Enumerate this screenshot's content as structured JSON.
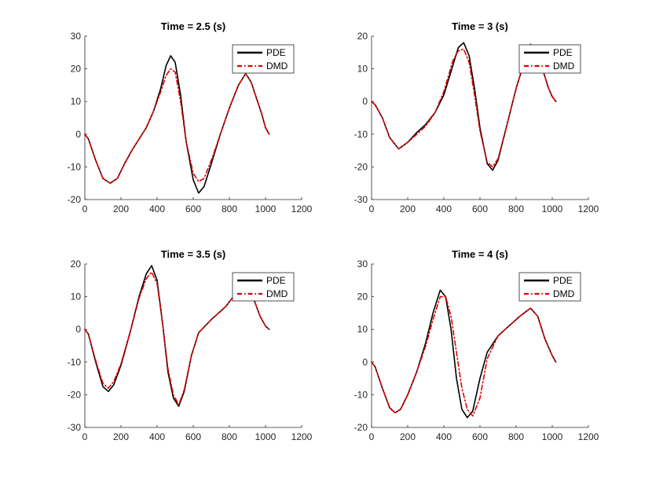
{
  "figure": {
    "colors": {
      "pde": "#000000",
      "dmd": "#e00000",
      "axis": "#262626"
    }
  },
  "chart_data": [
    {
      "type": "line",
      "title": "Time = 2.5 (s)",
      "xlim": [
        0,
        1200
      ],
      "ylim": [
        -20,
        30
      ],
      "xticks": [
        0,
        200,
        400,
        600,
        800,
        1000,
        1200
      ],
      "yticks": [
        -20,
        -10,
        0,
        10,
        20,
        30
      ],
      "xtick_labels": [
        "0",
        "200",
        "400",
        "600",
        "800",
        "1000",
        "1200"
      ],
      "ytick_labels": [
        "-20",
        "-10",
        "0",
        "10",
        "20",
        "30"
      ],
      "legend_position": "top-right",
      "grid": false,
      "series": [
        {
          "name": "PDE",
          "style": "solid",
          "x": [
            0,
            20,
            60,
            100,
            140,
            180,
            220,
            260,
            300,
            340,
            380,
            420,
            450,
            475,
            500,
            530,
            560,
            600,
            630,
            660,
            700,
            750,
            800,
            850,
            890,
            920,
            950,
            980,
            1000,
            1020
          ],
          "y": [
            0,
            -1.5,
            -8,
            -13.5,
            -15,
            -13.5,
            -9,
            -5,
            -1.5,
            2,
            7,
            14,
            21,
            24,
            22,
            12,
            -2,
            -14,
            -18,
            -16,
            -9,
            0,
            8,
            15,
            18.5,
            16,
            11,
            6,
            2,
            0
          ]
        },
        {
          "name": "DMD",
          "style": "dashdot",
          "x": [
            0,
            20,
            60,
            100,
            140,
            180,
            220,
            260,
            300,
            340,
            380,
            420,
            450,
            475,
            500,
            530,
            560,
            600,
            630,
            660,
            700,
            750,
            800,
            850,
            890,
            920,
            950,
            980,
            1000,
            1020
          ],
          "y": [
            0,
            -1.5,
            -8,
            -13.5,
            -15,
            -13.5,
            -9,
            -5,
            -1.5,
            2,
            7,
            13,
            18,
            20,
            19,
            10,
            -2,
            -12,
            -14.5,
            -13.5,
            -8,
            0,
            8,
            15,
            18.5,
            16,
            11,
            6,
            2,
            0
          ]
        }
      ]
    },
    {
      "type": "line",
      "title": "Time = 3 (s)",
      "xlim": [
        0,
        1200
      ],
      "ylim": [
        -30,
        20
      ],
      "xticks": [
        0,
        200,
        400,
        600,
        800,
        1000,
        1200
      ],
      "yticks": [
        -30,
        -20,
        -10,
        0,
        10,
        20
      ],
      "xtick_labels": [
        "0",
        "200",
        "400",
        "600",
        "800",
        "1000",
        "1200"
      ],
      "ytick_labels": [
        "-30",
        "-20",
        "-10",
        "0",
        "10",
        "20"
      ],
      "legend_position": "top-right",
      "grid": false,
      "series": [
        {
          "name": "PDE",
          "style": "solid",
          "x": [
            0,
            20,
            60,
            100,
            150,
            200,
            250,
            300,
            350,
            400,
            450,
            480,
            510,
            540,
            570,
            600,
            640,
            670,
            700,
            750,
            800,
            850,
            880,
            910,
            940,
            980,
            1000,
            1020
          ],
          "y": [
            0,
            -1,
            -5,
            -11,
            -14.5,
            -12.5,
            -9.5,
            -7,
            -3.5,
            2,
            11,
            16.5,
            18,
            14,
            4,
            -8,
            -19,
            -21,
            -18,
            -7,
            4,
            13,
            17.5,
            16,
            11,
            4,
            1.5,
            0
          ]
        },
        {
          "name": "DMD",
          "style": "dashdot",
          "x": [
            0,
            20,
            60,
            100,
            150,
            200,
            250,
            300,
            350,
            400,
            450,
            480,
            510,
            540,
            570,
            600,
            640,
            670,
            700,
            750,
            800,
            850,
            880,
            910,
            940,
            980,
            1000,
            1020
          ],
          "y": [
            0,
            -1,
            -5,
            -11,
            -14.5,
            -12.5,
            -10,
            -7.5,
            -3.5,
            3,
            12.5,
            15.5,
            16,
            12,
            2,
            -9,
            -18.5,
            -20,
            -17.5,
            -7,
            4,
            13,
            17.5,
            16,
            11,
            4,
            1.5,
            0
          ]
        }
      ]
    },
    {
      "type": "line",
      "title": "Time = 3.5 (s)",
      "xlim": [
        0,
        1200
      ],
      "ylim": [
        -30,
        20
      ],
      "xticks": [
        0,
        200,
        400,
        600,
        800,
        1000,
        1200
      ],
      "yticks": [
        -30,
        -20,
        -10,
        0,
        10,
        20
      ],
      "xtick_labels": [
        "0",
        "200",
        "400",
        "600",
        "800",
        "1000",
        "1200"
      ],
      "ytick_labels": [
        "-30",
        "-20",
        "-10",
        "0",
        "10",
        "20"
      ],
      "legend_position": "top-right",
      "grid": false,
      "series": [
        {
          "name": "PDE",
          "style": "solid",
          "x": [
            0,
            20,
            60,
            100,
            130,
            160,
            200,
            250,
            300,
            340,
            370,
            400,
            430,
            460,
            490,
            520,
            550,
            590,
            630,
            700,
            780,
            850,
            890,
            930,
            970,
            1000,
            1020
          ],
          "y": [
            0,
            -1.5,
            -10,
            -17.5,
            -19,
            -17,
            -11,
            -1,
            10,
            17,
            19.5,
            15,
            2,
            -13,
            -21,
            -23.5,
            -19,
            -8,
            -1,
            3,
            7,
            12,
            13.5,
            10,
            4,
            1,
            0
          ]
        },
        {
          "name": "DMD",
          "style": "dashdot",
          "x": [
            0,
            20,
            60,
            100,
            130,
            160,
            200,
            250,
            300,
            340,
            370,
            400,
            430,
            460,
            490,
            520,
            550,
            590,
            630,
            700,
            780,
            850,
            890,
            930,
            970,
            1000,
            1020
          ],
          "y": [
            0,
            -1.5,
            -9.5,
            -16.5,
            -18,
            -16,
            -10.5,
            -1,
            9.5,
            15.5,
            17.5,
            14,
            2,
            -12,
            -20,
            -23,
            -18.5,
            -8,
            -1,
            3,
            7,
            12,
            13.5,
            10,
            4,
            1,
            0
          ]
        }
      ]
    },
    {
      "type": "line",
      "title": "Time = 4 (s)",
      "xlim": [
        0,
        1200
      ],
      "ylim": [
        -20,
        30
      ],
      "xticks": [
        0,
        200,
        400,
        600,
        800,
        1000,
        1200
      ],
      "yticks": [
        -20,
        -10,
        0,
        10,
        20,
        30
      ],
      "xtick_labels": [
        "0",
        "200",
        "400",
        "600",
        "800",
        "1000",
        "1200"
      ],
      "ytick_labels": [
        "-20",
        "-10",
        "0",
        "10",
        "20",
        "30"
      ],
      "legend_position": "top-right",
      "grid": false,
      "series": [
        {
          "name": "PDE",
          "style": "solid",
          "x": [
            0,
            20,
            60,
            100,
            130,
            160,
            200,
            250,
            300,
            340,
            380,
            410,
            440,
            470,
            500,
            530,
            560,
            600,
            640,
            700,
            760,
            820,
            880,
            920,
            960,
            1000,
            1020
          ],
          "y": [
            0,
            -1.5,
            -8,
            -14,
            -15.5,
            -14.5,
            -10,
            -3,
            6,
            15,
            22,
            20,
            10,
            -5,
            -14.5,
            -17,
            -15,
            -5,
            3,
            8,
            11,
            14,
            16.5,
            14,
            7,
            2,
            0
          ]
        },
        {
          "name": "DMD",
          "style": "dashdot",
          "x": [
            0,
            20,
            60,
            100,
            130,
            160,
            200,
            250,
            300,
            340,
            380,
            410,
            440,
            470,
            500,
            530,
            560,
            600,
            640,
            700,
            760,
            820,
            880,
            920,
            960,
            1000,
            1020
          ],
          "y": [
            0,
            -1.5,
            -8,
            -14,
            -15.5,
            -14.5,
            -10,
            -3,
            5,
            13,
            20,
            20,
            14,
            3,
            -8,
            -14.5,
            -16.5,
            -11,
            1,
            8,
            11,
            14,
            16.5,
            14,
            7,
            2,
            0
          ]
        }
      ]
    }
  ]
}
